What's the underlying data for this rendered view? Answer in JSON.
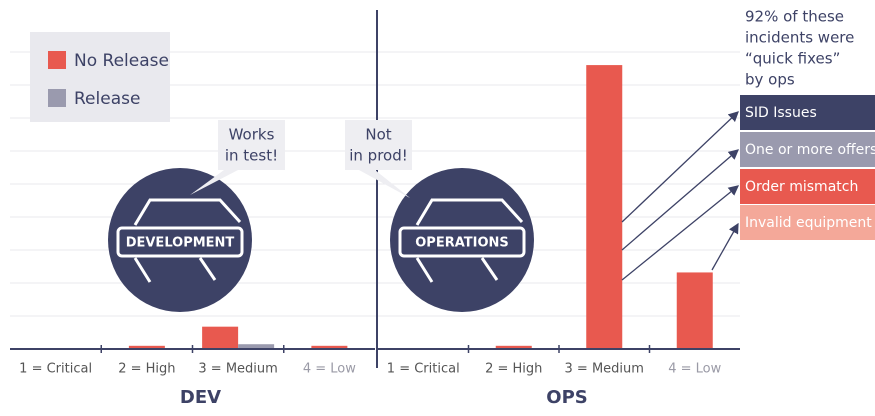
{
  "chart_data": [
    {
      "type": "bar",
      "title": "DEV",
      "categories": [
        "1 = Critical",
        "2 = High",
        "3 = Medium",
        "4 = Low"
      ],
      "series": [
        {
          "name": "No Release",
          "color": "#e8594f",
          "values": [
            0,
            0.1,
            0.7,
            0.1
          ]
        },
        {
          "name": "Release",
          "color": "#9a9aae",
          "values": [
            0,
            0,
            0.15,
            0
          ]
        }
      ],
      "ylim": [
        0,
        10
      ],
      "grid": true,
      "badge": "DEVELOPMENT",
      "bubble": [
        "Works",
        "in test!"
      ]
    },
    {
      "type": "bar",
      "title": "OPS",
      "categories": [
        "1 = Critical",
        "2 = High",
        "3 = Medium",
        "4 = Low"
      ],
      "series": [
        {
          "name": "No Release",
          "color": "#e8594f",
          "values": [
            0,
            0.1,
            8.9,
            2.4
          ]
        }
      ],
      "ylim": [
        0,
        10
      ],
      "grid": true,
      "badge": "OPERATIONS",
      "bubble": [
        "Not",
        "in prod!"
      ]
    }
  ],
  "annotation": [
    "92% of these",
    "incidents were",
    "“quick fixes”",
    "by ops"
  ],
  "breakdown": [
    {
      "label": "SID Issues",
      "color": "#3d4266"
    },
    {
      "label": "One or more offers",
      "color": "#9a9aae"
    },
    {
      "label": "Order mismatch",
      "color": "#e8594f"
    },
    {
      "label": "Invalid equipment",
      "color": "#f4a899"
    }
  ]
}
